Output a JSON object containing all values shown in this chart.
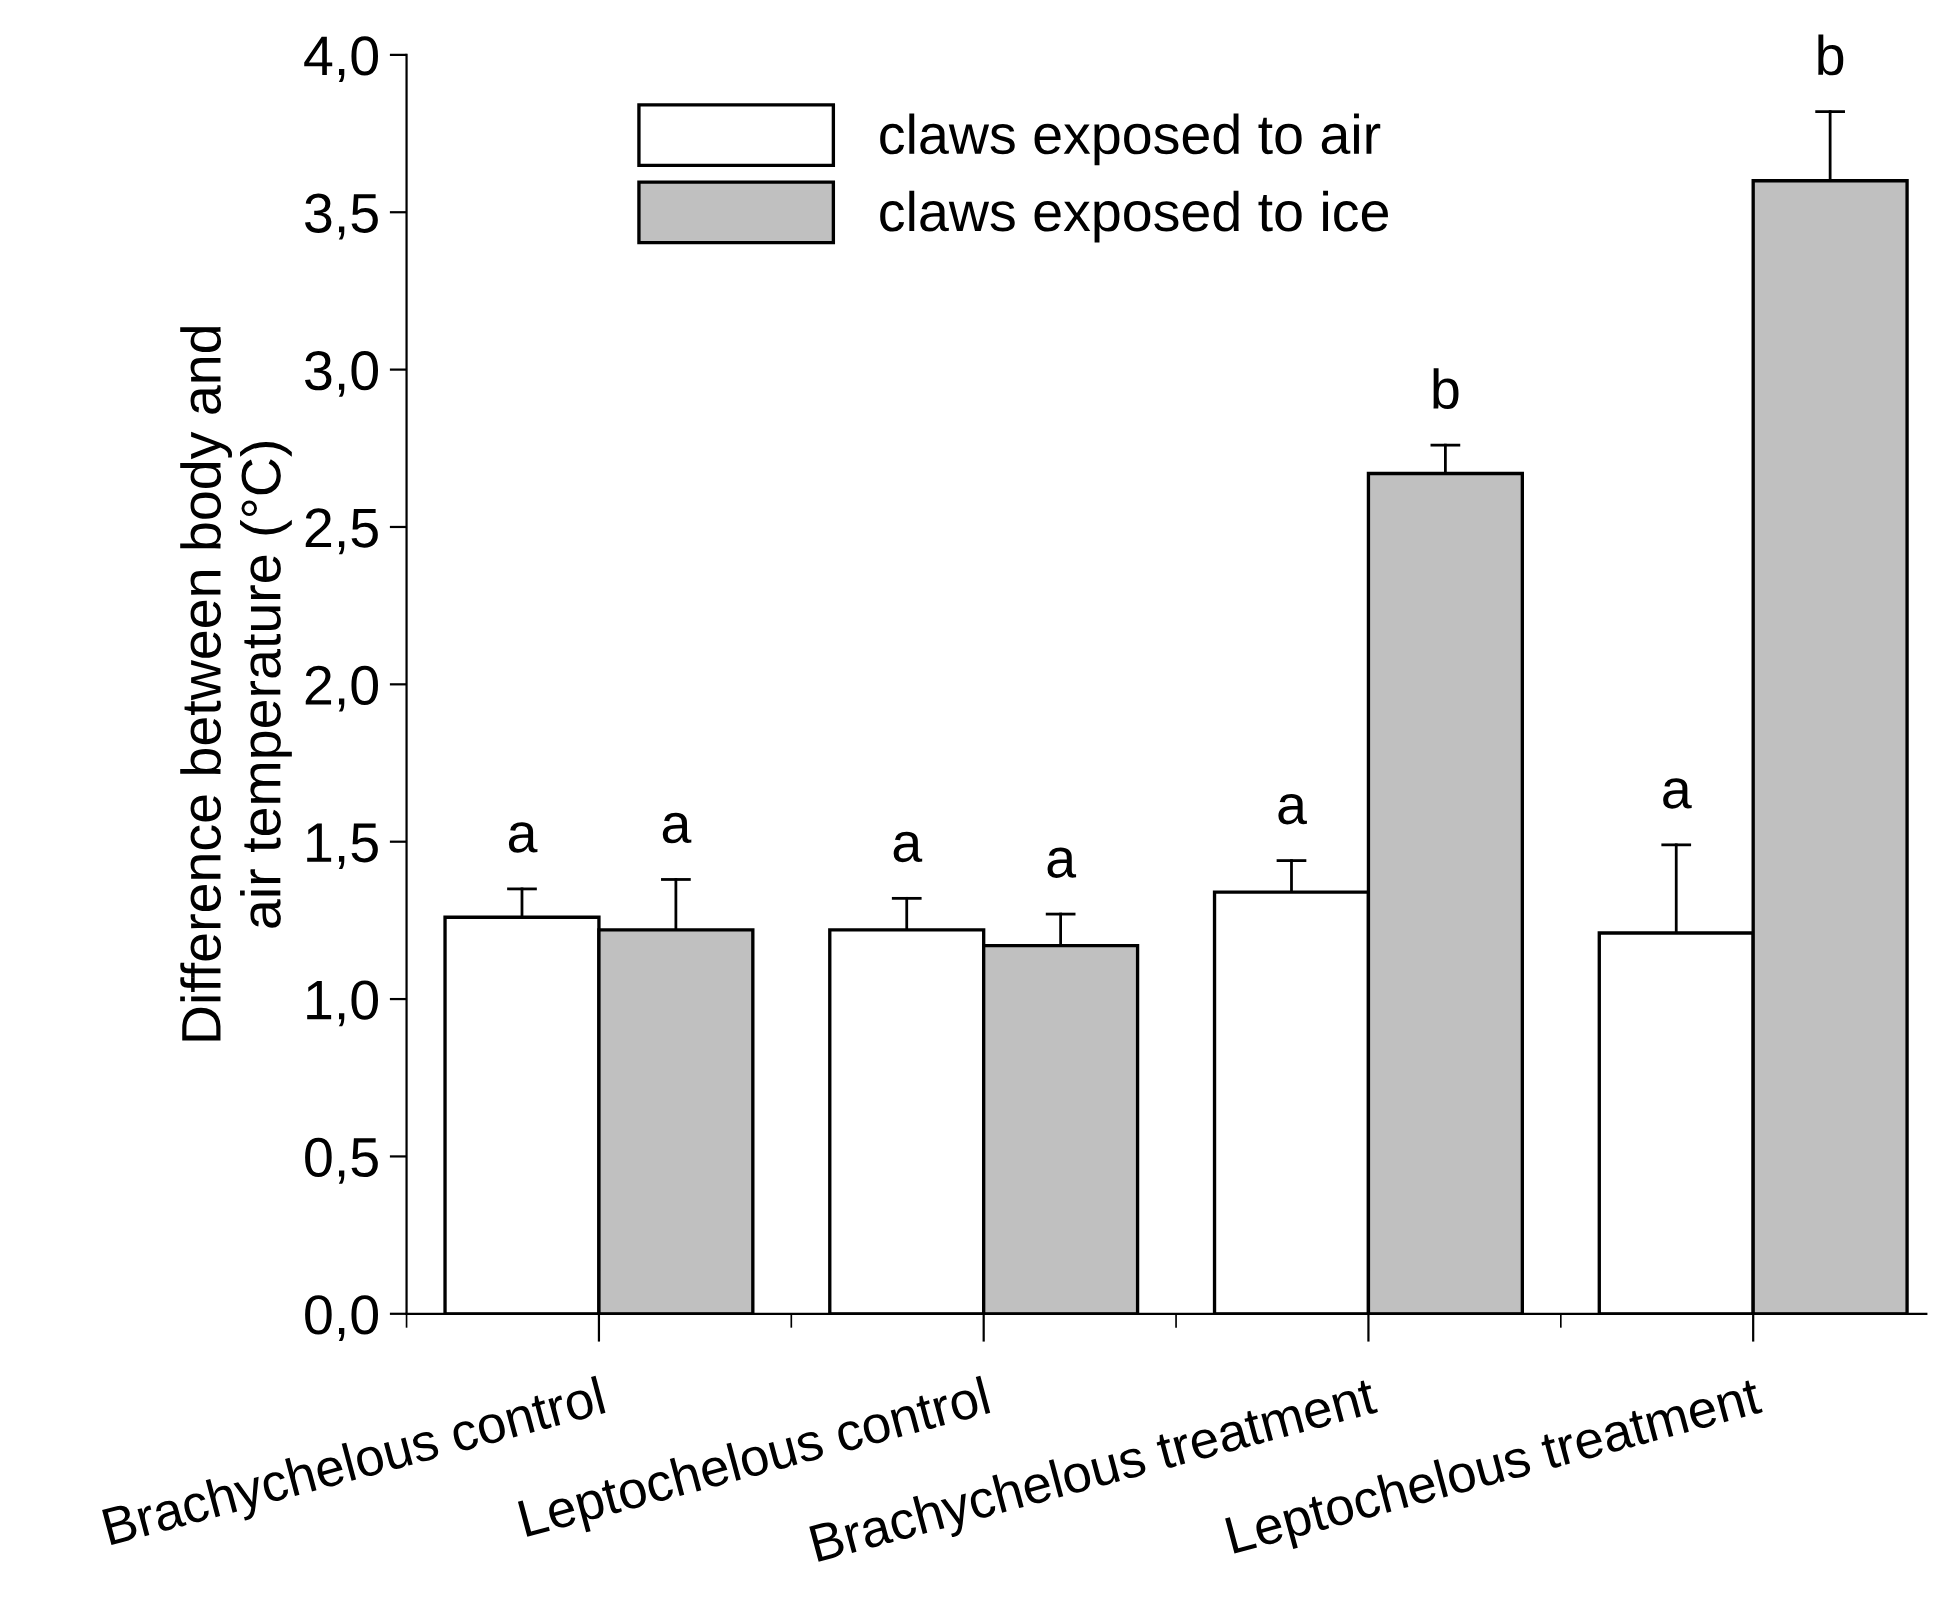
{
  "chart_data": {
    "type": "bar",
    "ylabel": "Difference between body and\nair temperature (°C)",
    "categories": [
      "Brachychelous control",
      "Leptochelous control",
      "Brachychelous treatment",
      "Leptochelous treatment"
    ],
    "series": [
      {
        "name": "claws exposed to air",
        "color": "#ffffff",
        "values": [
          1.26,
          1.22,
          1.34,
          1.21
        ],
        "errors": [
          [
            1.26,
            1.35
          ],
          [
            1.22,
            1.32
          ],
          [
            1.34,
            1.44
          ],
          [
            1.21,
            1.49
          ]
        ],
        "value_labels": [
          "a",
          "a",
          "a",
          "a"
        ]
      },
      {
        "name": "claws exposed to ice",
        "color": "#c0c0c0",
        "values": [
          1.22,
          1.17,
          2.67,
          3.6
        ],
        "errors": [
          [
            1.22,
            1.38
          ],
          [
            1.17,
            1.27
          ],
          [
            2.67,
            2.76
          ],
          [
            3.6,
            3.82
          ]
        ],
        "value_labels": [
          "a",
          "a",
          "b",
          "b"
        ]
      }
    ],
    "ylim": [
      0,
      4
    ],
    "yticks": [
      {
        "value": 0,
        "label": "0,0"
      },
      {
        "value": 0.5,
        "label": "0,5"
      },
      {
        "value": 1,
        "label": "1,0"
      },
      {
        "value": 1.5,
        "label": "1,5"
      },
      {
        "value": 2,
        "label": "2,0"
      },
      {
        "value": 2.5,
        "label": "2,5"
      },
      {
        "value": 3,
        "label": "3,0"
      },
      {
        "value": 3.5,
        "label": "3,5"
      },
      {
        "value": 4,
        "label": "4,0"
      }
    ],
    "grid": false,
    "legend": "top left"
  }
}
